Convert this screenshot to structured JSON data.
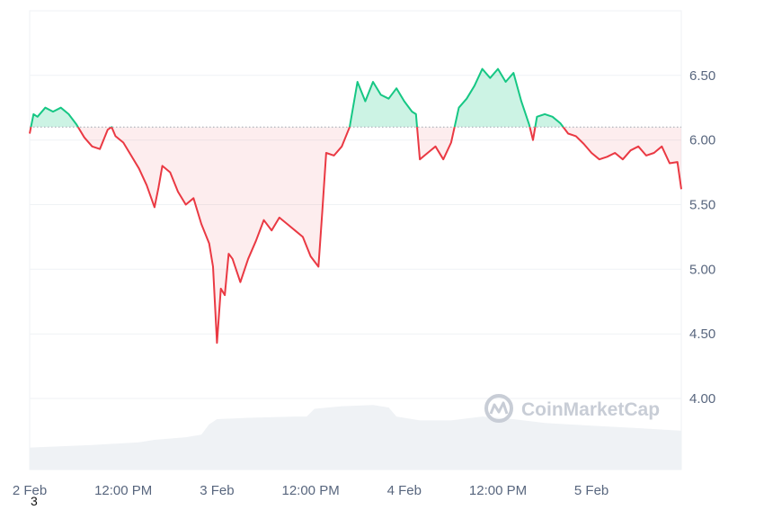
{
  "chart_data": {
    "type": "line",
    "baseline": 6.1,
    "ylim": [
      3.45,
      7.0
    ],
    "xlim": [
      0,
      83.5
    ],
    "x_unit": "hours since 2 Feb 00:00",
    "x_ticks": [
      {
        "x": 0,
        "label": "2 Feb"
      },
      {
        "x": 12,
        "label": "12:00 PM"
      },
      {
        "x": 24,
        "label": "3 Feb"
      },
      {
        "x": 36,
        "label": "12:00 PM"
      },
      {
        "x": 48,
        "label": "4 Feb"
      },
      {
        "x": 60,
        "label": "12:00 PM"
      },
      {
        "x": 72,
        "label": "5 Feb"
      }
    ],
    "y_ticks": [
      {
        "value": 6.5,
        "label": "6.50"
      },
      {
        "value": 6.0,
        "label": "6.00"
      },
      {
        "value": 5.5,
        "label": "5.50"
      },
      {
        "value": 5.0,
        "label": "5.00"
      },
      {
        "value": 4.5,
        "label": "4.50"
      },
      {
        "value": 4.0,
        "label": "4.00"
      }
    ],
    "price_series": [
      [
        0,
        6.05
      ],
      [
        0.5,
        6.2
      ],
      [
        1,
        6.18
      ],
      [
        2,
        6.25
      ],
      [
        3,
        6.22
      ],
      [
        4,
        6.25
      ],
      [
        5,
        6.2
      ],
      [
        6,
        6.12
      ],
      [
        7,
        6.02
      ],
      [
        8,
        5.95
      ],
      [
        9,
        5.93
      ],
      [
        10,
        6.08
      ],
      [
        10.5,
        6.1
      ],
      [
        11,
        6.03
      ],
      [
        12,
        5.98
      ],
      [
        13,
        5.88
      ],
      [
        14,
        5.78
      ],
      [
        15,
        5.65
      ],
      [
        16,
        5.48
      ],
      [
        16.5,
        5.63
      ],
      [
        17,
        5.8
      ],
      [
        18,
        5.75
      ],
      [
        19,
        5.6
      ],
      [
        20,
        5.5
      ],
      [
        21,
        5.55
      ],
      [
        22,
        5.35
      ],
      [
        23,
        5.2
      ],
      [
        23.5,
        5.02
      ],
      [
        24,
        4.43
      ],
      [
        24.5,
        4.85
      ],
      [
        25,
        4.8
      ],
      [
        25.5,
        5.12
      ],
      [
        26,
        5.08
      ],
      [
        27,
        4.9
      ],
      [
        28,
        5.08
      ],
      [
        29,
        5.22
      ],
      [
        30,
        5.38
      ],
      [
        31,
        5.3
      ],
      [
        32,
        5.4
      ],
      [
        33,
        5.35
      ],
      [
        34,
        5.3
      ],
      [
        35,
        5.25
      ],
      [
        36,
        5.1
      ],
      [
        37,
        5.02
      ],
      [
        37.5,
        5.45
      ],
      [
        38,
        5.9
      ],
      [
        39,
        5.88
      ],
      [
        40,
        5.95
      ],
      [
        41,
        6.1
      ],
      [
        42,
        6.45
      ],
      [
        43,
        6.3
      ],
      [
        44,
        6.45
      ],
      [
        45,
        6.35
      ],
      [
        46,
        6.32
      ],
      [
        47,
        6.4
      ],
      [
        48,
        6.3
      ],
      [
        49,
        6.22
      ],
      [
        49.5,
        6.2
      ],
      [
        50,
        5.85
      ],
      [
        51,
        5.9
      ],
      [
        52,
        5.95
      ],
      [
        53,
        5.85
      ],
      [
        54,
        5.98
      ],
      [
        55,
        6.25
      ],
      [
        56,
        6.32
      ],
      [
        57,
        6.42
      ],
      [
        58,
        6.55
      ],
      [
        59,
        6.48
      ],
      [
        60,
        6.55
      ],
      [
        61,
        6.45
      ],
      [
        62,
        6.52
      ],
      [
        63,
        6.3
      ],
      [
        64,
        6.12
      ],
      [
        64.5,
        6.0
      ],
      [
        65,
        6.18
      ],
      [
        66,
        6.2
      ],
      [
        67,
        6.18
      ],
      [
        68,
        6.13
      ],
      [
        69,
        6.05
      ],
      [
        70,
        6.03
      ],
      [
        71,
        5.97
      ],
      [
        72,
        5.9
      ],
      [
        73,
        5.85
      ],
      [
        74,
        5.87
      ],
      [
        75,
        5.9
      ],
      [
        76,
        5.85
      ],
      [
        77,
        5.92
      ],
      [
        78,
        5.95
      ],
      [
        79,
        5.88
      ],
      [
        80,
        5.9
      ],
      [
        81,
        5.95
      ],
      [
        82,
        5.82
      ],
      [
        83,
        5.83
      ],
      [
        83.5,
        5.62
      ]
    ],
    "volume_band": [
      [
        0,
        3.62
      ],
      [
        8,
        3.64
      ],
      [
        14,
        3.66
      ],
      [
        16,
        3.68
      ],
      [
        20,
        3.7
      ],
      [
        22,
        3.72
      ],
      [
        23,
        3.8
      ],
      [
        24,
        3.84
      ],
      [
        28,
        3.85
      ],
      [
        34,
        3.86
      ],
      [
        35.5,
        3.86
      ],
      [
        36.5,
        3.92
      ],
      [
        40,
        3.94
      ],
      [
        44,
        3.95
      ],
      [
        46,
        3.93
      ],
      [
        47,
        3.86
      ],
      [
        50,
        3.83
      ],
      [
        54,
        3.83
      ],
      [
        58,
        3.86
      ],
      [
        62,
        3.84
      ],
      [
        66,
        3.81
      ],
      [
        72,
        3.79
      ],
      [
        78,
        3.77
      ],
      [
        83.5,
        3.75
      ]
    ],
    "colors": {
      "up": "#16c784",
      "down": "#ea3943",
      "volume": "#eff2f5"
    }
  },
  "watermark": {
    "brand": "CoinMarketCap"
  },
  "footnote": "3"
}
